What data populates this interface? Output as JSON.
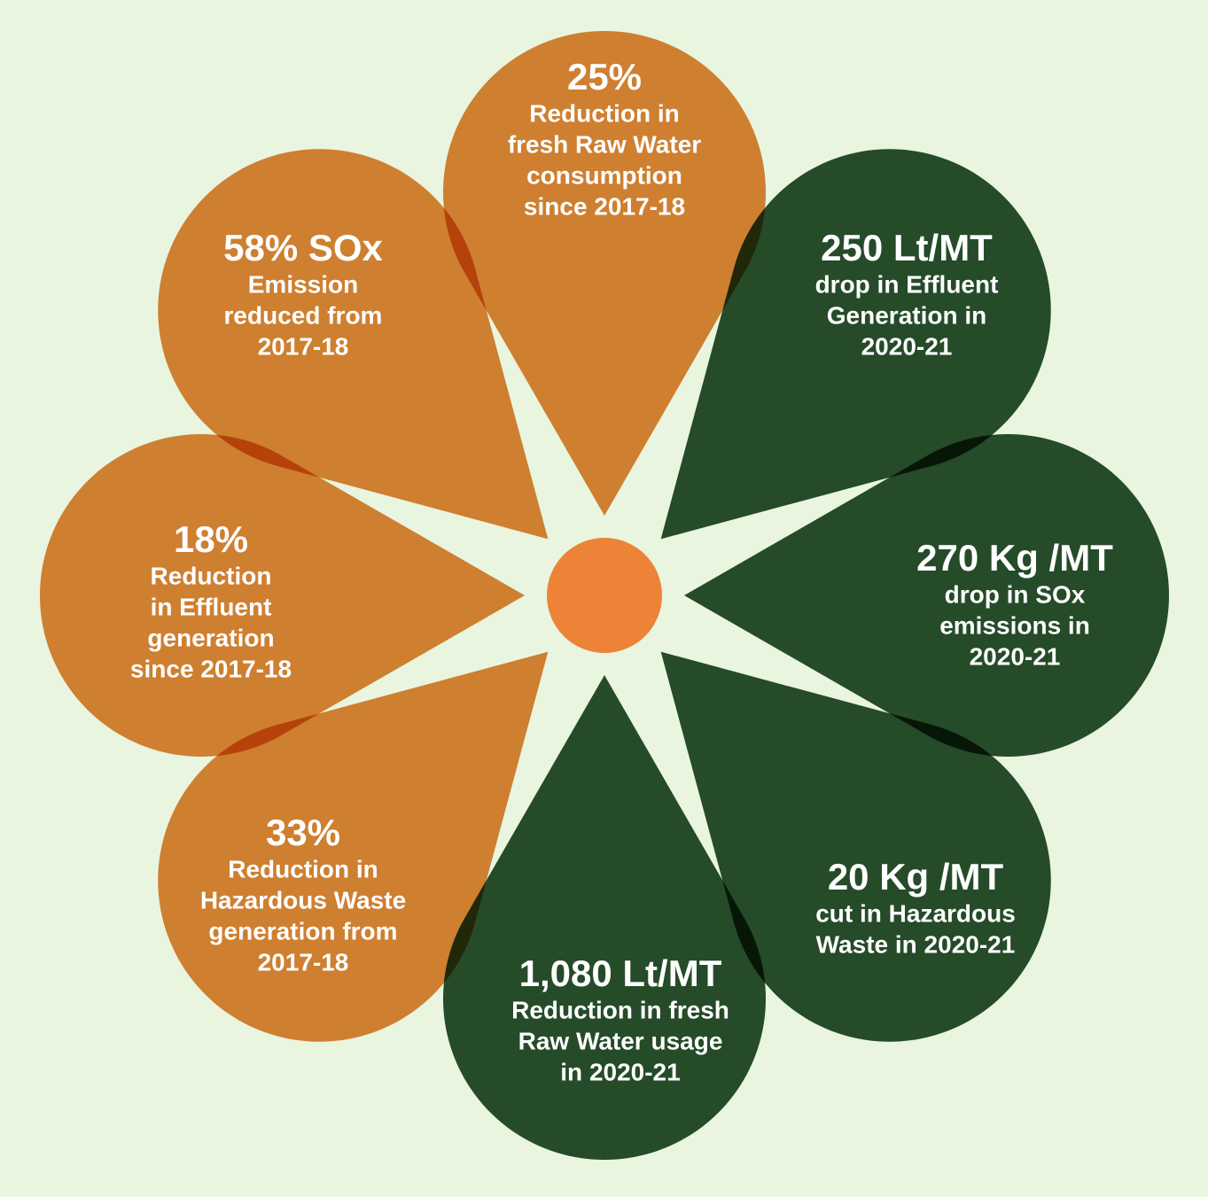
{
  "petals": [
    {
      "headline": "25%",
      "lines": [
        "Reduction in",
        "fresh Raw Water",
        "consumption",
        "since 2017-18"
      ]
    },
    {
      "headline": "250 Lt/MT",
      "lines": [
        "drop in Effluent",
        "Generation in",
        "2020-21"
      ]
    },
    {
      "headline": "270 Kg /MT",
      "lines": [
        "drop in SOx",
        "emissions in",
        "2020-21"
      ]
    },
    {
      "headline": "20 Kg /MT",
      "lines": [
        "cut in Hazardous",
        "Waste in 2020-21"
      ]
    },
    {
      "headline": "1,080 Lt/MT",
      "lines": [
        "Reduction in fresh",
        "Raw Water usage",
        "in 2020-21"
      ]
    },
    {
      "headline": "33%",
      "lines": [
        "Reduction in",
        "Hazardous Waste",
        "generation from",
        "2017-18"
      ]
    },
    {
      "headline": "18%",
      "lines": [
        "Reduction",
        "in Effluent",
        "generation",
        "since 2017-18"
      ]
    },
    {
      "headline": "58% SOx",
      "lines": [
        "Emission",
        "reduced from",
        "2017-18"
      ]
    }
  ]
}
